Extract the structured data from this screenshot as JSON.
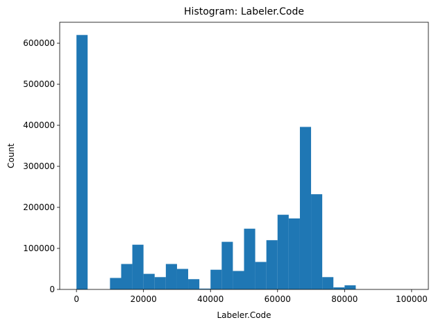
{
  "chart_data": {
    "type": "bar",
    "title": "Histogram: Labeler.Code",
    "xlabel": "Labeler.Code",
    "ylabel": "Count",
    "xlim": [
      -5000,
      105000
    ],
    "ylim": [
      0,
      651000
    ],
    "x_ticks": [
      0,
      20000,
      40000,
      60000,
      80000,
      100000
    ],
    "y_ticks": [
      0,
      100000,
      200000,
      300000,
      400000,
      500000,
      600000
    ],
    "bar_color": "#1f77b4",
    "bin_edges": [
      0,
      3333,
      6667,
      10000,
      13333,
      16667,
      20000,
      23333,
      26667,
      30000,
      33333,
      36667,
      40000,
      43333,
      46667,
      50000,
      53333,
      56667,
      60000,
      63333,
      66667,
      70000,
      73333,
      76667,
      80000,
      83333,
      86667,
      90000,
      93333,
      96667,
      100000
    ],
    "values": [
      620000,
      0,
      0,
      28000,
      62000,
      109000,
      38000,
      30000,
      62000,
      50000,
      25000,
      2000,
      48000,
      116000,
      45000,
      148000,
      67000,
      120000,
      182000,
      173000,
      396000,
      232000,
      30000,
      5000,
      10000,
      0,
      0,
      0,
      0,
      0
    ],
    "grid": false,
    "legend": "none"
  }
}
